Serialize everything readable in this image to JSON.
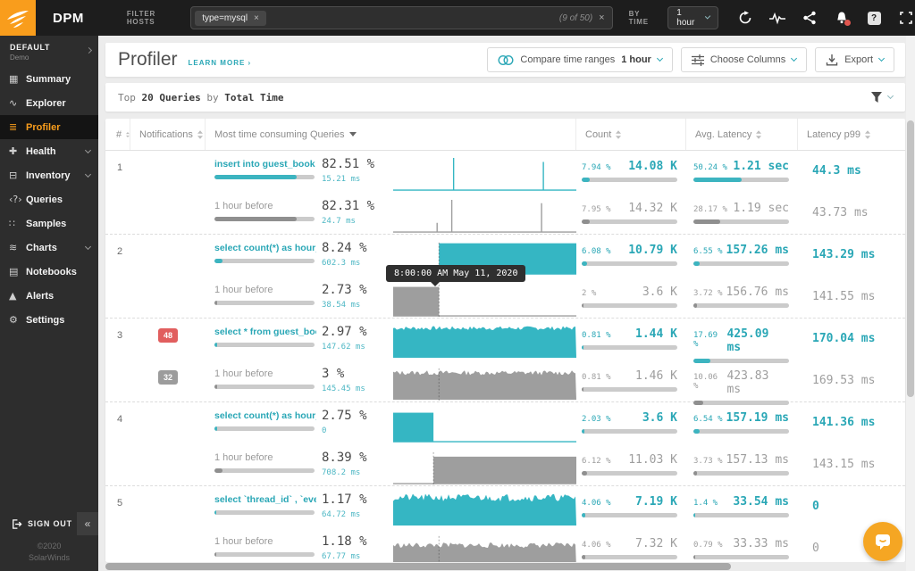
{
  "topbar": {
    "app_name": "DPM",
    "filter_label": "FILTER HOSTS",
    "filter_tag": "type=mysql",
    "filter_tag_close": "×",
    "filter_count": "(9 of 50)",
    "filter_clear": "×",
    "by_time_label": "BY TIME",
    "time_range": "1 hour"
  },
  "sidebar": {
    "env_name": "DEFAULT",
    "env_sub": "Demo",
    "items": [
      {
        "label": "Summary",
        "icon_name": "summary-icon",
        "glyph": "▦",
        "chevron": null,
        "active": false
      },
      {
        "label": "Explorer",
        "icon_name": "explorer-icon",
        "glyph": "∿",
        "chevron": null,
        "active": false
      },
      {
        "label": "Profiler",
        "icon_name": "profiler-icon",
        "glyph": "≣",
        "chevron": null,
        "active": true
      },
      {
        "label": "Health",
        "icon_name": "health-icon",
        "glyph": "✚",
        "chevron": true,
        "active": false
      },
      {
        "label": "Inventory",
        "icon_name": "inventory-icon",
        "glyph": "⊟",
        "chevron": true,
        "active": false
      },
      {
        "label": "Queries",
        "icon_name": "queries-icon",
        "glyph": "‹?›",
        "chevron": null,
        "active": false
      },
      {
        "label": "Samples",
        "icon_name": "samples-icon",
        "glyph": "∷",
        "chevron": null,
        "active": false
      },
      {
        "label": "Charts",
        "icon_name": "charts-icon",
        "glyph": "≋",
        "chevron": true,
        "active": false
      },
      {
        "label": "Notebooks",
        "icon_name": "notebooks-icon",
        "glyph": "▤",
        "chevron": null,
        "active": false
      },
      {
        "label": "Alerts",
        "icon_name": "alerts-icon",
        "glyph": "▲",
        "chevron": null,
        "active": false
      },
      {
        "label": "Settings",
        "icon_name": "settings-icon",
        "glyph": "⚙",
        "chevron": null,
        "active": false
      }
    ],
    "sign_out": "SIGN OUT",
    "collapse": "«",
    "copyright": "©2020",
    "company": "SolarWinds"
  },
  "header": {
    "title": "Profiler",
    "learn_more": "LEARN MORE ›",
    "compare_label": "Compare time ranges",
    "compare_value": "1 hour",
    "columns_label": "Choose Columns",
    "export_label": "Export"
  },
  "toolbar": {
    "t1": "Top",
    "t2": "20 Queries",
    "t3": "by",
    "t4": "Total Time"
  },
  "table": {
    "columns": {
      "rank": "#",
      "notifications": "Notifications",
      "queries": "Most time consuming Queries",
      "count": "Count",
      "avg_latency": "Avg. Latency",
      "latency_p99": "Latency p99"
    },
    "prev_label": "1 hour before",
    "rows": [
      {
        "rank": "1",
        "query": "insert into guest_book (…",
        "current": {
          "total": "82.51 %",
          "sub": "15.21 ms",
          "bar": 82,
          "spark": {
            "type": "spikes",
            "color": "#35b6c3",
            "points": [
              [
                0.33,
                1
              ],
              [
                0.82,
                0.88
              ]
            ]
          },
          "count_pct": "7.94 %",
          "count_val": "14.08 K",
          "count_bar": 8,
          "lat_pct": "50.24 %",
          "lat_val": "1.21 sec",
          "lat_bar": 50,
          "p99": "44.3 ms"
        },
        "previous": {
          "total": "82.31 %",
          "sub": "24.7 ms",
          "bar": 82,
          "spark": {
            "type": "spikes",
            "color": "#9e9e9e",
            "points": [
              [
                0.24,
                0.32
              ],
              [
                0.32,
                1
              ],
              [
                0.81,
                0.9
              ]
            ]
          },
          "count_pct": "7.95 %",
          "count_val": "14.32 K",
          "count_bar": 8,
          "lat_pct": "28.17 %",
          "lat_val": "1.19 sec",
          "lat_bar": 28,
          "p99": "43.73 ms"
        }
      },
      {
        "rank": "2",
        "query": "select count(*) as hour_…",
        "current": {
          "total": "8.24 %",
          "sub": "602.3 ms",
          "bar": 8,
          "spark": {
            "type": "block",
            "color": "#35b6c3",
            "from": 0.25,
            "to": 1,
            "amp": 0.93,
            "cursor": 0.25
          },
          "count_pct": "6.08 %",
          "count_val": "10.79 K",
          "count_bar": 6,
          "lat_pct": "6.55 %",
          "lat_val": "157.26 ms",
          "lat_bar": 7,
          "p99": "143.29 ms"
        },
        "previous": {
          "total": "2.73 %",
          "sub": "38.54 ms",
          "bar": 3,
          "spark": {
            "type": "block",
            "color": "#9e9e9e",
            "from": 0,
            "to": 0.25,
            "amp": 0.88,
            "cursor": 0.25
          },
          "count_pct": "2 %",
          "count_val": "3.6 K",
          "count_bar": 2,
          "lat_pct": "3.72 %",
          "lat_val": "156.76 ms",
          "lat_bar": 4,
          "p99": "141.55 ms"
        }
      },
      {
        "rank": "3",
        "query": "select * from guest_boo…",
        "badge_current": {
          "text": "48",
          "color": "#e15e5e"
        },
        "badge_previous": {
          "text": "32",
          "color": "#9c9c9c"
        },
        "current": {
          "total": "2.97 %",
          "sub": "147.62 ms",
          "bar": 3,
          "spark": {
            "type": "noise",
            "color": "#35b6c3",
            "amp": 0.9,
            "jitter": 0.12,
            "seed": 7
          },
          "count_pct": "0.81 %",
          "count_val": "1.44 K",
          "count_bar": 2,
          "lat_pct": "17.69 %",
          "lat_val": "425.09 ms",
          "lat_bar": 18,
          "p99": "170.04 ms"
        },
        "previous": {
          "total": "3 %",
          "sub": "145.45 ms",
          "bar": 3,
          "spark": {
            "type": "noise",
            "color": "#9e9e9e",
            "amp": 0.82,
            "jitter": 0.14,
            "seed": 13,
            "cursor": 0.25
          },
          "count_pct": "0.81 %",
          "count_val": "1.46 K",
          "count_bar": 2,
          "lat_pct": "10.06 %",
          "lat_val": "423.83 ms",
          "lat_bar": 10,
          "p99": "169.53 ms"
        }
      },
      {
        "rank": "4",
        "query": "select count(*) as hour_…",
        "current": {
          "total": "2.75 %",
          "sub": "0",
          "bar": 3,
          "spark": {
            "type": "block",
            "color": "#35b6c3",
            "from": 0,
            "to": 0.22,
            "amp": 0.88
          },
          "count_pct": "2.03 %",
          "count_val": "3.6 K",
          "count_bar": 3,
          "lat_pct": "6.54 %",
          "lat_val": "157.19 ms",
          "lat_bar": 7,
          "p99": "141.36 ms"
        },
        "previous": {
          "total": "8.39 %",
          "sub": "708.2 ms",
          "bar": 8,
          "spark": {
            "type": "block",
            "color": "#9e9e9e",
            "from": 0.22,
            "to": 1,
            "amp": 0.82,
            "cursor": 0.22
          },
          "count_pct": "6.12 %",
          "count_val": "11.03 K",
          "count_bar": 6,
          "lat_pct": "3.73 %",
          "lat_val": "157.13 ms",
          "lat_bar": 4,
          "p99": "143.15 ms"
        }
      },
      {
        "rank": "5",
        "query": "select `thread_id` , `even…",
        "current": {
          "total": "1.17 %",
          "sub": "64.72 ms",
          "bar": 2,
          "spark": {
            "type": "noise",
            "color": "#35b6c3",
            "amp": 0.85,
            "jitter": 0.22,
            "seed": 21
          },
          "count_pct": "4.06 %",
          "count_val": "7.19 K",
          "count_bar": 4,
          "lat_pct": "1.4 %",
          "lat_val": "33.54 ms",
          "lat_bar": 2,
          "p99": "0"
        },
        "previous": {
          "total": "1.18 %",
          "sub": "67.77 ms",
          "bar": 2,
          "spark": {
            "type": "noise",
            "color": "#9e9e9e",
            "amp": 0.68,
            "jitter": 0.16,
            "seed": 33,
            "cursor": 0.25
          },
          "count_pct": "4.06 %",
          "count_val": "7.32 K",
          "count_bar": 4,
          "lat_pct": "0.79 %",
          "lat_val": "33.33 ms",
          "lat_bar": 2,
          "p99": "0"
        }
      }
    ]
  },
  "tooltip": {
    "text": "8:00:00 AM May 11, 2020"
  },
  "colors": {
    "accent_teal": "#2aa7b6",
    "chart_teal": "#35b6c3",
    "chart_gray": "#9e9e9e",
    "brand_orange": "#f99d1c",
    "alert_red": "#e15e5e"
  }
}
